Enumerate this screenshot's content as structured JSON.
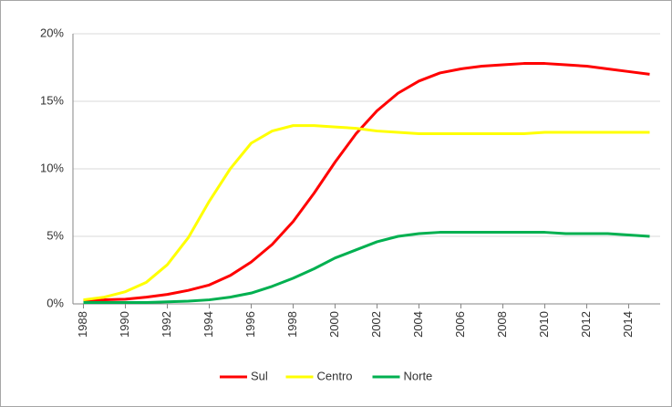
{
  "chart_data": {
    "type": "line",
    "x": [
      1988,
      1989,
      1990,
      1991,
      1992,
      1993,
      1994,
      1995,
      1996,
      1997,
      1998,
      1999,
      2000,
      2001,
      2002,
      2003,
      2004,
      2005,
      2006,
      2007,
      2008,
      2009,
      2010,
      2011,
      2012,
      2013,
      2014,
      2015
    ],
    "series": [
      {
        "name": "Sul",
        "color": "#ff0000",
        "values": [
          0.2,
          0.3,
          0.35,
          0.5,
          0.7,
          1.0,
          1.4,
          2.1,
          3.1,
          4.4,
          6.1,
          8.2,
          10.5,
          12.6,
          14.3,
          15.6,
          16.5,
          17.1,
          17.4,
          17.6,
          17.7,
          17.8,
          17.8,
          17.7,
          17.6,
          17.4,
          17.2,
          17.0
        ]
      },
      {
        "name": "Centro",
        "color": "#ffff00",
        "values": [
          0.3,
          0.5,
          0.9,
          1.6,
          2.9,
          4.9,
          7.6,
          10.0,
          11.9,
          12.8,
          13.2,
          13.2,
          13.1,
          13.0,
          12.8,
          12.7,
          12.6,
          12.6,
          12.6,
          12.6,
          12.6,
          12.6,
          12.7,
          12.7,
          12.7,
          12.7,
          12.7,
          12.7
        ]
      },
      {
        "name": "Norte",
        "color": "#00b050",
        "values": [
          0.1,
          0.1,
          0.1,
          0.1,
          0.15,
          0.2,
          0.3,
          0.5,
          0.8,
          1.3,
          1.9,
          2.6,
          3.4,
          4.0,
          4.6,
          5.0,
          5.2,
          5.3,
          5.3,
          5.3,
          5.3,
          5.3,
          5.3,
          5.2,
          5.2,
          5.2,
          5.1,
          5.0
        ]
      }
    ],
    "xlim": [
      1987.5,
      2015.5
    ],
    "xticks": [
      1988,
      1990,
      1992,
      1994,
      1996,
      1998,
      2000,
      2002,
      2004,
      2006,
      2008,
      2010,
      2012,
      2014
    ],
    "ylim": [
      0,
      20
    ],
    "yticks": [
      {
        "value": 0,
        "label": "0%"
      },
      {
        "value": 5,
        "label": "5%"
      },
      {
        "value": 10,
        "label": "10%"
      },
      {
        "value": 15,
        "label": "15%"
      },
      {
        "value": 20,
        "label": "20%"
      }
    ],
    "grid": true,
    "legend": "bottom"
  }
}
